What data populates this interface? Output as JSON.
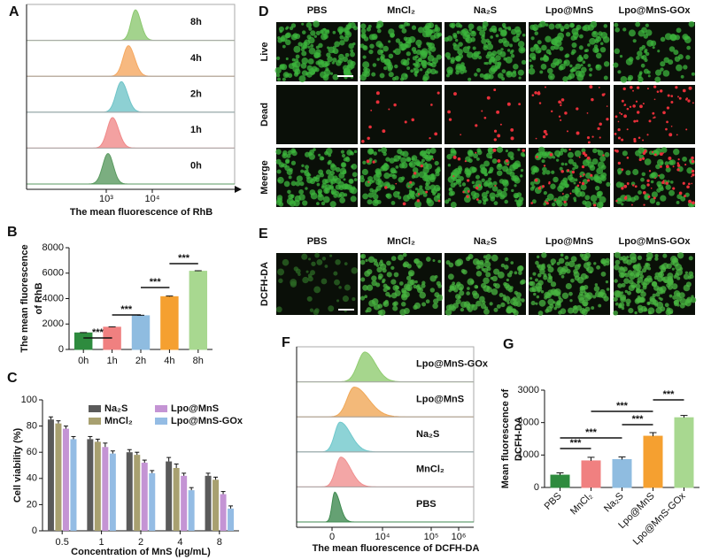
{
  "panel_labels": [
    "A",
    "B",
    "C",
    "D",
    "E",
    "F",
    "G"
  ],
  "chart_data": [
    {
      "type": "flow-histogram",
      "xlabel": "The mean fluorescence of RhB",
      "xtick_labels": [
        "10³",
        "10⁴"
      ],
      "series": [
        {
          "name": "8h",
          "color": "#8cc870"
        },
        {
          "name": "4h",
          "color": "#f5a860"
        },
        {
          "name": "2h",
          "color": "#70c4c8"
        },
        {
          "name": "1h",
          "color": "#f08a8a"
        },
        {
          "name": "0h",
          "color": "#5a9a60"
        }
      ]
    },
    {
      "type": "bar",
      "ylabel": [
        "The mean fluorescence",
        "of RhB"
      ],
      "categories": [
        "0h",
        "1h",
        "2h",
        "4h",
        "8h"
      ],
      "values": [
        1300,
        1750,
        2650,
        4150,
        6150
      ],
      "errors": [
        30,
        30,
        40,
        50,
        40
      ],
      "colors": [
        "#2e8b3e",
        "#f08080",
        "#8fbce0",
        "#f5a030",
        "#a8d890"
      ],
      "ylim": [
        0,
        8000
      ],
      "yticks": [
        0,
        2000,
        4000,
        6000,
        8000
      ],
      "significance": [
        "***",
        "***",
        "***",
        "***"
      ]
    },
    {
      "type": "grouped-bar",
      "xlabel": "Concentration of MnS (μg/mL)",
      "ylabel": "Cell viability (%)",
      "categories": [
        "0.5",
        "1",
        "2",
        "4",
        "8"
      ],
      "ylim": [
        0,
        100
      ],
      "yticks": [
        0,
        20,
        40,
        60,
        80,
        100
      ],
      "series": [
        {
          "name": "Na₂S",
          "color": "#5a5a5a",
          "values": [
            85,
            70,
            60,
            53,
            42
          ],
          "errors": [
            2,
            2,
            2,
            3,
            2
          ]
        },
        {
          "name": "MnCl₂",
          "color": "#a8a070",
          "values": [
            82,
            68,
            58,
            48,
            39
          ],
          "errors": [
            2,
            2,
            2,
            3,
            2
          ]
        },
        {
          "name": "Lpo@MnS",
          "color": "#c494d4",
          "values": [
            78,
            64,
            52,
            42,
            28
          ],
          "errors": [
            2,
            3,
            2,
            2,
            2
          ]
        },
        {
          "name": "Lpo@MnS-GOx",
          "color": "#94bce4",
          "values": [
            70,
            59,
            44,
            31,
            17
          ],
          "errors": [
            2,
            2,
            2,
            2,
            2
          ]
        }
      ]
    },
    {
      "type": "flow-histogram",
      "xlabel": "The mean fluorescence of DCFH-DA",
      "xtick_labels": [
        "0",
        "10⁴",
        "10⁵",
        "10⁶"
      ],
      "series": [
        {
          "name": "Lpo@MnS-GOx",
          "color": "#90cc70"
        },
        {
          "name": "Lpo@MnS",
          "color": "#f0a858"
        },
        {
          "name": "Na₂S",
          "color": "#70c8cc"
        },
        {
          "name": "MnCl₂",
          "color": "#f09090"
        },
        {
          "name": "PBS",
          "color": "#3f8a50"
        }
      ]
    },
    {
      "type": "bar",
      "ylabel": [
        "Mean fluorescence of",
        "DCFH-DA"
      ],
      "categories": [
        "PBS",
        "MnCl₂",
        "Na₂S",
        "Lpo@MnS",
        "Lpo@MnS-GOx"
      ],
      "values": [
        380,
        820,
        860,
        1580,
        2150
      ],
      "errors": [
        70,
        110,
        80,
        110,
        70
      ],
      "colors": [
        "#2e8b3e",
        "#f08080",
        "#8fbce0",
        "#f5a030",
        "#a8d890"
      ],
      "ylim": [
        0,
        3000
      ],
      "yticks": [
        0,
        1000,
        2000,
        3000
      ],
      "significance": [
        "***",
        "***",
        "***",
        "***",
        "***"
      ]
    }
  ],
  "micrographs": {
    "D": {
      "columns": [
        "PBS",
        "MnCl₂",
        "Na₂S",
        "Lpo@MnS",
        "Lpo@MnS-GOx"
      ],
      "rows": [
        "Live",
        "Dead",
        "Meerge"
      ]
    },
    "E": {
      "columns": [
        "PBS",
        "MnCl₂",
        "Na₂S",
        "Lpo@MnS",
        "Lpo@MnS-GOx"
      ],
      "rows": [
        "DCFH-DA"
      ]
    }
  }
}
